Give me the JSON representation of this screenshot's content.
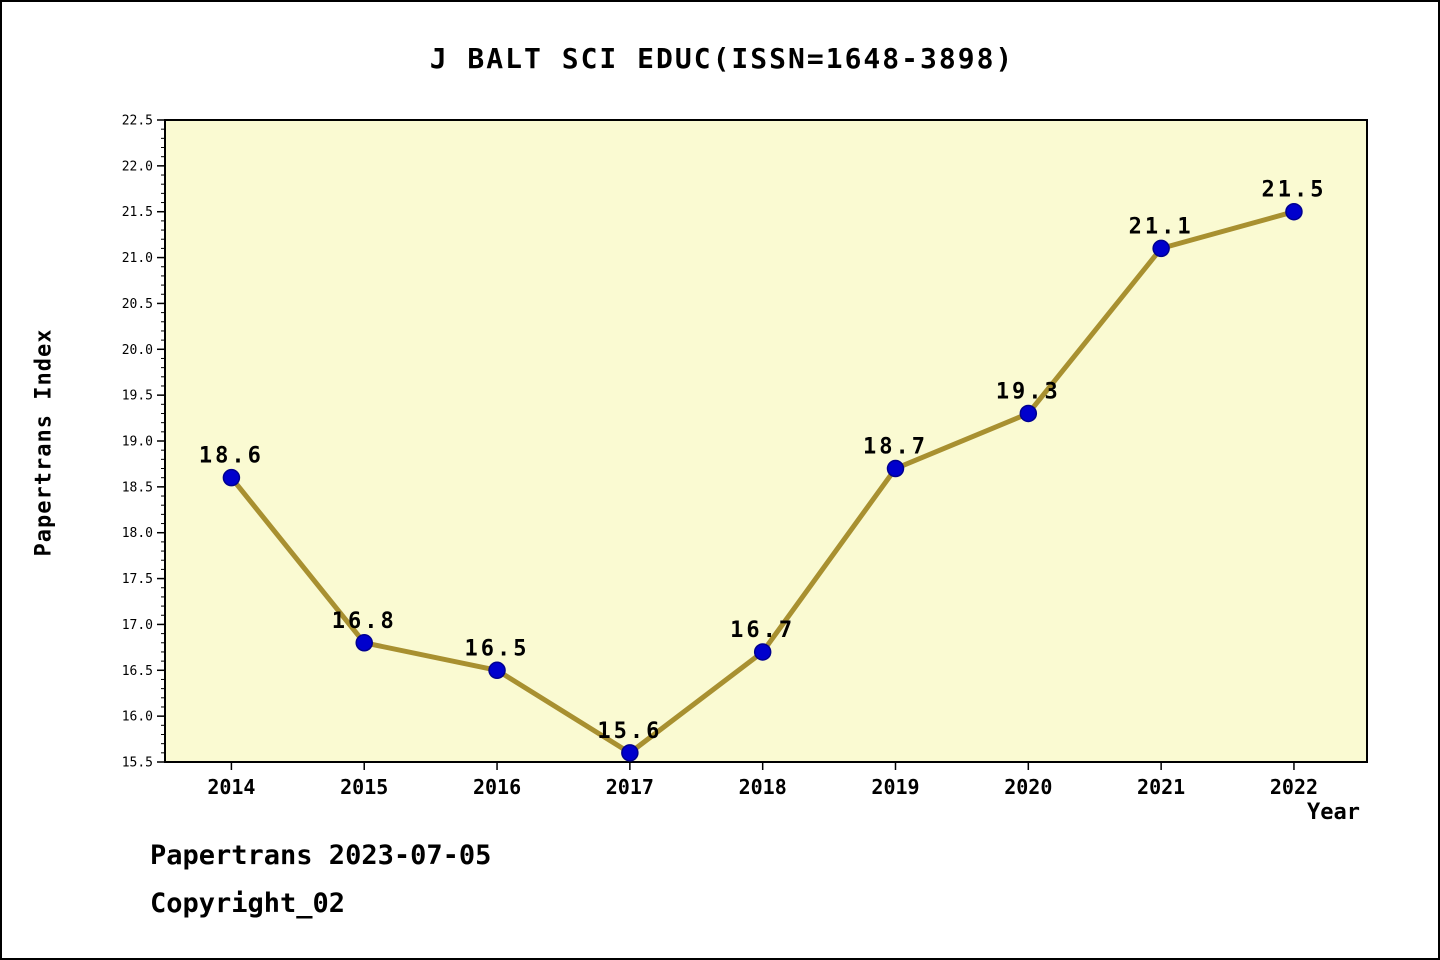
{
  "title": "J BALT SCI EDUC(ISSN=1648-3898)",
  "footer": {
    "line1": "Papertrans 2023-07-05",
    "line2": "Copyright_02"
  },
  "chart_data": {
    "type": "line",
    "title": "J BALT SCI EDUC(ISSN=1648-3898)",
    "xlabel": "Year",
    "ylabel": "Papertrans Index",
    "x": [
      2014,
      2015,
      2016,
      2017,
      2018,
      2019,
      2020,
      2021,
      2022
    ],
    "values": [
      18.6,
      16.8,
      16.5,
      15.6,
      16.7,
      18.7,
      19.3,
      21.1,
      21.5
    ],
    "point_labels": [
      "18.6",
      "16.8",
      "16.5",
      "15.6",
      "16.7",
      "18.7",
      "19.3",
      "21.1",
      "21.5"
    ],
    "xlim": [
      2013.5,
      2022.55
    ],
    "ylim": [
      15.5,
      22.5
    ],
    "ytick_step": 0.5,
    "y_minor_step": 0.1,
    "grid": false,
    "legend": "none",
    "colors": {
      "plot_bg": "#FAFAD2",
      "line": "#A89030",
      "marker": "#0000CD",
      "marker_edge": "#000090",
      "axis": "#000000"
    }
  }
}
